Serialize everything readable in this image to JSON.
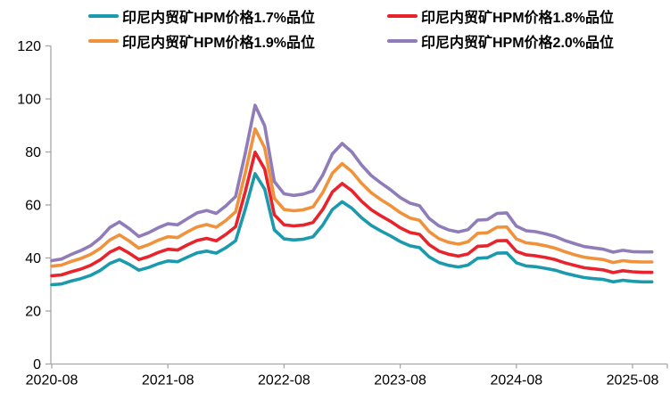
{
  "chart_data": {
    "type": "line",
    "title": "",
    "xlabel": "",
    "ylabel": "",
    "ylim": [
      0,
      120
    ],
    "grid": false,
    "legend_position": "top",
    "axis_color": "#A6A6A6",
    "text_color": "#000000",
    "y_ticks": [
      0,
      20,
      40,
      60,
      80,
      100,
      120
    ],
    "x_tick_labels": [
      "2020-08",
      "2021-08",
      "2022-08",
      "2023-08",
      "2024-08",
      "2025-08"
    ],
    "x_tick_indices": [
      0,
      12,
      24,
      36,
      48,
      60
    ],
    "x": [
      "2020-08",
      "2020-09",
      "2020-10",
      "2020-11",
      "2020-12",
      "2021-01",
      "2021-02",
      "2021-03",
      "2021-04",
      "2021-05",
      "2021-06",
      "2021-07",
      "2021-08",
      "2021-09",
      "2021-10",
      "2021-11",
      "2021-12",
      "2022-01",
      "2022-02",
      "2022-03",
      "2022-04",
      "2022-05",
      "2022-06",
      "2022-07",
      "2022-08",
      "2022-09",
      "2022-10",
      "2022-11",
      "2022-12",
      "2023-01",
      "2023-02",
      "2023-03",
      "2023-04",
      "2023-05",
      "2023-06",
      "2023-07",
      "2023-08",
      "2023-09",
      "2023-10",
      "2023-11",
      "2023-12",
      "2024-01",
      "2024-02",
      "2024-03",
      "2024-04",
      "2024-05",
      "2024-06",
      "2024-07",
      "2024-08",
      "2024-09",
      "2024-10",
      "2024-11",
      "2024-12",
      "2025-01",
      "2025-02",
      "2025-03",
      "2025-04",
      "2025-05",
      "2025-06",
      "2025-07",
      "2025-08",
      "2025-09",
      "2025-10"
    ],
    "series": [
      {
        "name": "印尼内贸矿HPM价格1.7%品位",
        "color": "#1B9AAE",
        "values": [
          29.9,
          30.2,
          31.3,
          32.2,
          33.4,
          35.3,
          37.9,
          39.4,
          37.6,
          35.4,
          36.4,
          37.8,
          38.9,
          38.6,
          40.3,
          41.9,
          42.6,
          41.8,
          43.9,
          46.5,
          58.5,
          71.8,
          66.0,
          50.6,
          47.2,
          46.8,
          47.1,
          48.0,
          52.4,
          58.3,
          61.2,
          58.8,
          55.2,
          52.3,
          50.2,
          48.3,
          46.2,
          44.6,
          43.9,
          40.4,
          38.3,
          37.2,
          36.6,
          37.3,
          39.9,
          40.1,
          41.8,
          41.9,
          38.2,
          37.0,
          36.7,
          36.1,
          35.4,
          34.3,
          33.4,
          32.6,
          32.2,
          31.9,
          31.0,
          31.6,
          31.2,
          31.0,
          31.0
        ]
      },
      {
        "name": "印尼内贸矿HPM价格1.8%品位",
        "color": "#E8232B",
        "values": [
          33.3,
          33.6,
          34.8,
          35.8,
          37.2,
          39.3,
          42.2,
          43.9,
          41.8,
          39.4,
          40.5,
          42.1,
          43.3,
          43.0,
          44.9,
          46.6,
          47.4,
          46.5,
          48.9,
          51.8,
          65.1,
          79.9,
          73.5,
          56.3,
          52.5,
          52.1,
          52.4,
          53.4,
          58.3,
          64.9,
          68.1,
          65.4,
          61.4,
          58.2,
          55.9,
          53.8,
          51.4,
          49.6,
          48.9,
          45.0,
          42.6,
          41.4,
          40.7,
          41.5,
          44.4,
          44.6,
          46.5,
          46.6,
          42.5,
          41.2,
          40.8,
          40.2,
          39.4,
          38.2,
          37.2,
          36.3,
          35.9,
          35.5,
          34.5,
          35.2,
          34.8,
          34.6,
          34.6
        ]
      },
      {
        "name": "印尼内贸矿HPM价格1.9%品位",
        "color": "#F0913C",
        "values": [
          36.9,
          37.3,
          38.7,
          39.8,
          41.3,
          43.6,
          46.8,
          48.7,
          46.4,
          43.7,
          45.0,
          46.7,
          48.0,
          47.7,
          49.8,
          51.7,
          52.6,
          51.6,
          54.2,
          57.4,
          72.2,
          88.7,
          81.5,
          62.5,
          58.3,
          57.8,
          58.2,
          59.3,
          64.7,
          72.0,
          75.6,
          72.6,
          68.2,
          64.6,
          62.0,
          59.7,
          57.1,
          55.1,
          54.2,
          49.9,
          47.3,
          45.9,
          45.2,
          46.1,
          49.3,
          49.5,
          51.6,
          51.7,
          47.2,
          45.7,
          45.3,
          44.6,
          43.7,
          42.4,
          41.2,
          40.3,
          39.8,
          39.4,
          38.3,
          39.0,
          38.6,
          38.5,
          38.5
        ]
      },
      {
        "name": "印尼内贸矿HPM价格2.0%品位",
        "color": "#8F7CB8",
        "values": [
          39.0,
          39.6,
          41.3,
          42.8,
          44.6,
          47.5,
          51.5,
          53.6,
          51.1,
          48.1,
          49.5,
          51.4,
          52.9,
          52.5,
          54.8,
          57.0,
          57.9,
          56.8,
          59.7,
          63.2,
          79.6,
          97.6,
          89.8,
          68.8,
          64.2,
          63.6,
          64.1,
          65.3,
          71.3,
          79.3,
          83.2,
          80.0,
          75.1,
          71.1,
          68.3,
          65.7,
          62.8,
          60.7,
          59.7,
          54.9,
          52.1,
          50.6,
          49.8,
          50.7,
          54.3,
          54.5,
          56.8,
          57.0,
          52.0,
          50.3,
          49.9,
          49.1,
          48.1,
          46.6,
          45.4,
          44.3,
          43.8,
          43.3,
          42.2,
          42.9,
          42.4,
          42.3,
          42.3
        ]
      }
    ]
  }
}
